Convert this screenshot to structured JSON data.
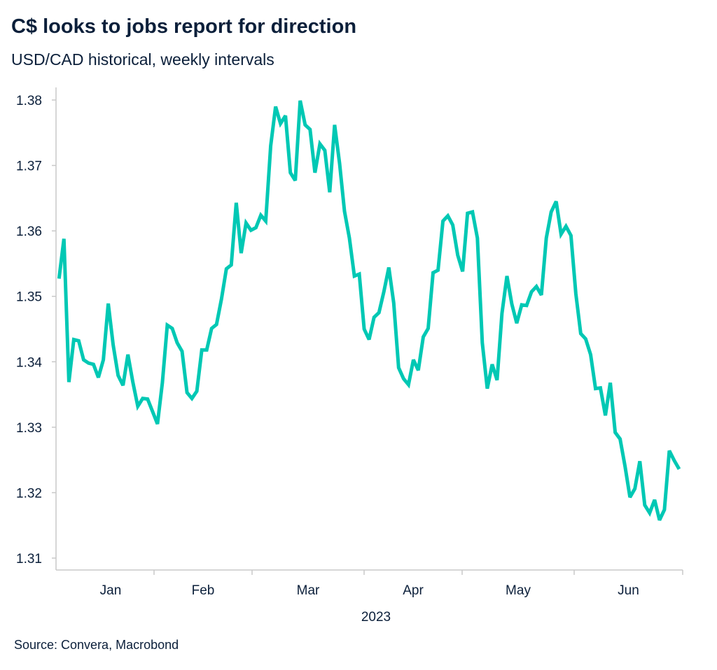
{
  "chart_data": {
    "type": "line",
    "title": "C$ looks to jobs report for direction",
    "subtitle": "USD/CAD historical, weekly intervals",
    "source": "Source: Convera, Macrobond",
    "xlabel": "2023",
    "ylabel": "",
    "x_tick_labels": [
      "Jan",
      "Feb",
      "Mar",
      "Apr",
      "May",
      "Jun"
    ],
    "y_ticks": [
      1.31,
      1.32,
      1.33,
      1.34,
      1.35,
      1.36,
      1.37,
      1.38
    ],
    "ylim": [
      1.31,
      1.38
    ],
    "grid": false,
    "line_color": "#00c8b4",
    "series": [
      {
        "values": [
          1.3527,
          1.3588,
          1.3369,
          1.3434,
          1.3432,
          1.3403,
          1.3398,
          1.3396,
          1.3376,
          1.3403,
          1.3489,
          1.3426,
          1.3379,
          1.3364,
          1.3411,
          1.3369,
          1.3332,
          1.3344,
          1.3343,
          1.3324,
          1.3305,
          1.3368,
          1.3456,
          1.3451,
          1.3429,
          1.3416,
          1.3353,
          1.3344,
          1.3355,
          1.3418,
          1.3418,
          1.3451,
          1.3457,
          1.3496,
          1.3542,
          1.3548,
          1.3643,
          1.3566,
          1.3612,
          1.3601,
          1.3605,
          1.3624,
          1.3615,
          1.373,
          1.379,
          1.3764,
          1.3776,
          1.3689,
          1.3677,
          1.3799,
          1.3762,
          1.3755,
          1.3689,
          1.3733,
          1.3723,
          1.3659,
          1.3762,
          1.3703,
          1.363,
          1.3589,
          1.3531,
          1.3534,
          1.345,
          1.3434,
          1.3468,
          1.3475,
          1.3507,
          1.3544,
          1.349,
          1.3391,
          1.3374,
          1.3365,
          1.3403,
          1.3387,
          1.3438,
          1.3451,
          1.3536,
          1.354,
          1.3615,
          1.3623,
          1.3609,
          1.3563,
          1.3538,
          1.3627,
          1.3629,
          1.3589,
          1.3429,
          1.3359,
          1.3396,
          1.3372,
          1.3474,
          1.3531,
          1.3488,
          1.3459,
          1.3487,
          1.3486,
          1.3507,
          1.3515,
          1.3502,
          1.3589,
          1.3629,
          1.3645,
          1.3595,
          1.3607,
          1.3593,
          1.3504,
          1.3443,
          1.3435,
          1.3411,
          1.3359,
          1.336,
          1.3318,
          1.3368,
          1.3292,
          1.3282,
          1.324,
          1.3193,
          1.3206,
          1.3248,
          1.3181,
          1.3169,
          1.3189,
          1.3158,
          1.3174,
          1.3264,
          1.3249,
          1.3236
        ]
      }
    ]
  }
}
